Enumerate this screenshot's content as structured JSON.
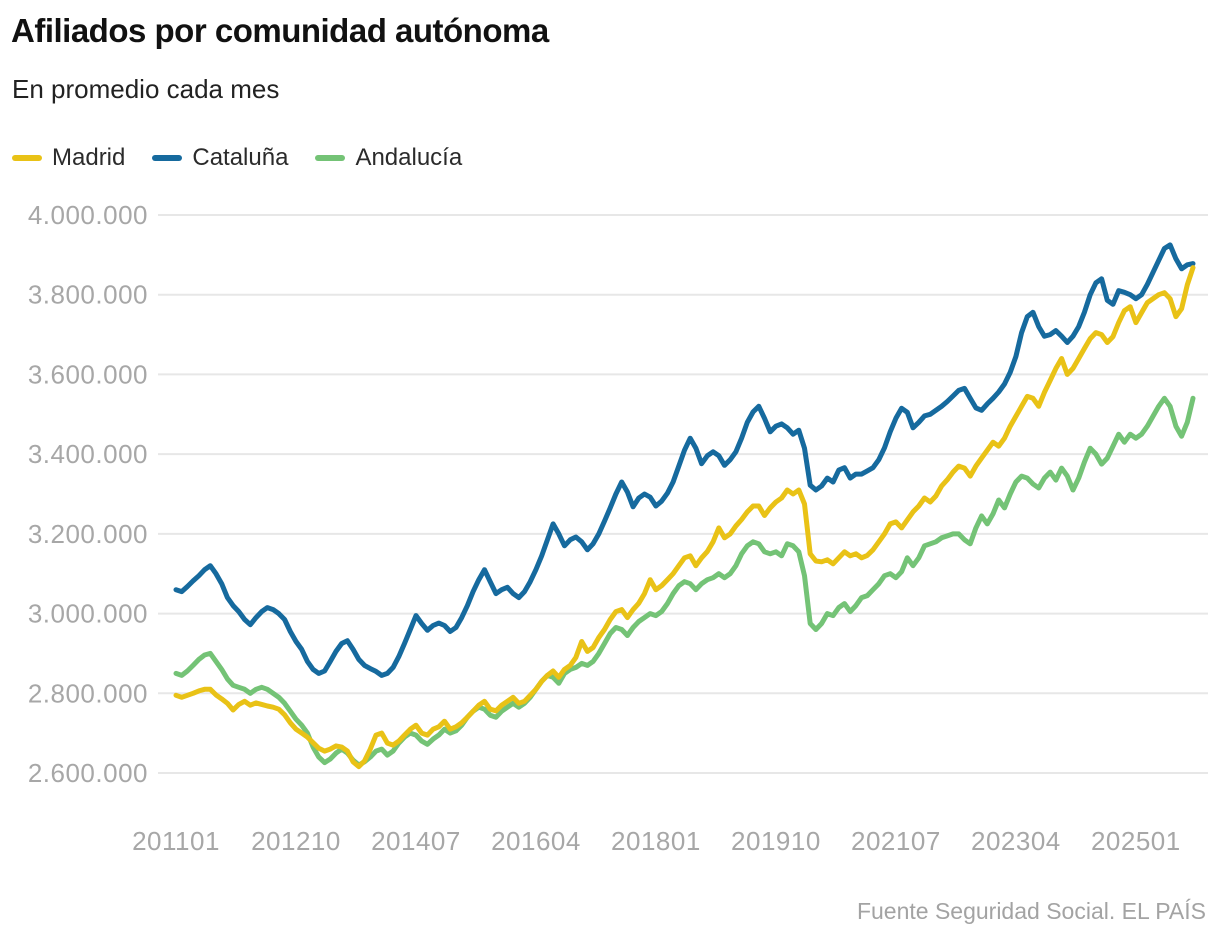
{
  "header": {
    "title": "Afiliados por comunidad autónoma",
    "subtitle": "En promedio cada mes"
  },
  "source": "Fuente Seguridad Social. EL PAÍS",
  "colors": {
    "madrid": "#e9c216",
    "cataluna": "#166a9e",
    "andalucia": "#74c376",
    "grid": "#e7e7e7",
    "axis_text": "#a7a7a7",
    "title_text": "#111111"
  },
  "chart_data": {
    "type": "line",
    "title": "Afiliados por comunidad autónoma",
    "subtitle": "En promedio cada mes",
    "source": "Fuente Seguridad Social. EL PAÍS",
    "x_format": "YYYYMM",
    "x_first": "201101",
    "points_per_series": 179,
    "x_interval": "monthly",
    "legend_position": "top",
    "grid": "horizontal",
    "ylim": [
      2600000,
      4000000
    ],
    "y_ticks": [
      {
        "value": 4000000,
        "label": "4.000.000"
      },
      {
        "value": 3800000,
        "label": "3.800.000"
      },
      {
        "value": 3600000,
        "label": "3.600.000"
      },
      {
        "value": 3400000,
        "label": "3.400.000"
      },
      {
        "value": 3200000,
        "label": "3.200.000"
      },
      {
        "value": 3000000,
        "label": "3.000.000"
      },
      {
        "value": 2800000,
        "label": "2.800.000"
      },
      {
        "value": 2600000,
        "label": "2.600.000"
      }
    ],
    "x_ticks": [
      {
        "index": 0,
        "label": "201101"
      },
      {
        "index": 21,
        "label": "201210"
      },
      {
        "index": 42,
        "label": "201407"
      },
      {
        "index": 63,
        "label": "201604"
      },
      {
        "index": 84,
        "label": "201801"
      },
      {
        "index": 105,
        "label": "201910"
      },
      {
        "index": 126,
        "label": "202107"
      },
      {
        "index": 147,
        "label": "202304"
      },
      {
        "index": 168,
        "label": "202501"
      }
    ],
    "series": [
      {
        "name": "Madrid",
        "color": "#e9c216",
        "values": [
          2795000,
          2790000,
          2795000,
          2800000,
          2806000,
          2810000,
          2810000,
          2796000,
          2786000,
          2775000,
          2758000,
          2772000,
          2780000,
          2770000,
          2776000,
          2772000,
          2768000,
          2765000,
          2760000,
          2746000,
          2726000,
          2710000,
          2700000,
          2690000,
          2676000,
          2662000,
          2655000,
          2660000,
          2668000,
          2665000,
          2655000,
          2628000,
          2616000,
          2630000,
          2660000,
          2695000,
          2700000,
          2675000,
          2670000,
          2680000,
          2695000,
          2710000,
          2720000,
          2700000,
          2695000,
          2710000,
          2716000,
          2730000,
          2710000,
          2716000,
          2726000,
          2740000,
          2755000,
          2770000,
          2780000,
          2760000,
          2756000,
          2770000,
          2780000,
          2790000,
          2775000,
          2780000,
          2795000,
          2810000,
          2830000,
          2845000,
          2856000,
          2840000,
          2860000,
          2870000,
          2890000,
          2930000,
          2905000,
          2915000,
          2940000,
          2960000,
          2985000,
          3005000,
          3010000,
          2990000,
          3010000,
          3026000,
          3050000,
          3085000,
          3060000,
          3070000,
          3085000,
          3100000,
          3120000,
          3140000,
          3145000,
          3120000,
          3140000,
          3156000,
          3180000,
          3215000,
          3190000,
          3200000,
          3220000,
          3236000,
          3255000,
          3270000,
          3270000,
          3246000,
          3265000,
          3280000,
          3290000,
          3310000,
          3300000,
          3310000,
          3275000,
          3150000,
          3132000,
          3130000,
          3135000,
          3125000,
          3140000,
          3155000,
          3145000,
          3150000,
          3140000,
          3146000,
          3160000,
          3180000,
          3200000,
          3225000,
          3230000,
          3215000,
          3235000,
          3255000,
          3270000,
          3290000,
          3280000,
          3295000,
          3320000,
          3336000,
          3355000,
          3370000,
          3365000,
          3345000,
          3370000,
          3390000,
          3410000,
          3430000,
          3420000,
          3440000,
          3470000,
          3495000,
          3520000,
          3545000,
          3540000,
          3520000,
          3555000,
          3585000,
          3615000,
          3640000,
          3600000,
          3615000,
          3640000,
          3665000,
          3690000,
          3705000,
          3700000,
          3680000,
          3695000,
          3730000,
          3760000,
          3770000,
          3730000,
          3755000,
          3780000,
          3790000,
          3800000,
          3805000,
          3790000,
          3745000,
          3765000,
          3825000,
          3868000
        ]
      },
      {
        "name": "Cataluña",
        "color": "#166a9e",
        "values": [
          3060000,
          3055000,
          3068000,
          3082000,
          3095000,
          3110000,
          3120000,
          3100000,
          3075000,
          3040000,
          3020000,
          3005000,
          2985000,
          2972000,
          2990000,
          3005000,
          3015000,
          3010000,
          3000000,
          2985000,
          2955000,
          2930000,
          2910000,
          2880000,
          2860000,
          2850000,
          2856000,
          2880000,
          2905000,
          2925000,
          2932000,
          2910000,
          2885000,
          2870000,
          2862000,
          2855000,
          2845000,
          2850000,
          2865000,
          2892000,
          2925000,
          2960000,
          2995000,
          2975000,
          2958000,
          2970000,
          2976000,
          2970000,
          2955000,
          2965000,
          2990000,
          3020000,
          3055000,
          3085000,
          3110000,
          3080000,
          3050000,
          3060000,
          3066000,
          3050000,
          3040000,
          3055000,
          3080000,
          3110000,
          3145000,
          3185000,
          3225000,
          3200000,
          3170000,
          3185000,
          3192000,
          3180000,
          3160000,
          3175000,
          3200000,
          3232000,
          3265000,
          3300000,
          3330000,
          3305000,
          3268000,
          3290000,
          3300000,
          3292000,
          3270000,
          3282000,
          3302000,
          3330000,
          3370000,
          3410000,
          3440000,
          3415000,
          3376000,
          3396000,
          3406000,
          3396000,
          3372000,
          3386000,
          3406000,
          3440000,
          3480000,
          3506000,
          3520000,
          3490000,
          3456000,
          3470000,
          3476000,
          3466000,
          3450000,
          3460000,
          3415000,
          3322000,
          3310000,
          3320000,
          3340000,
          3330000,
          3360000,
          3366000,
          3340000,
          3350000,
          3350000,
          3358000,
          3366000,
          3386000,
          3416000,
          3456000,
          3490000,
          3515000,
          3505000,
          3466000,
          3480000,
          3496000,
          3500000,
          3510000,
          3520000,
          3532000,
          3546000,
          3560000,
          3565000,
          3540000,
          3516000,
          3510000,
          3526000,
          3540000,
          3556000,
          3576000,
          3605000,
          3645000,
          3705000,
          3745000,
          3756000,
          3720000,
          3696000,
          3700000,
          3710000,
          3696000,
          3680000,
          3696000,
          3720000,
          3756000,
          3800000,
          3830000,
          3840000,
          3786000,
          3776000,
          3810000,
          3806000,
          3800000,
          3790000,
          3800000,
          3826000,
          3856000,
          3886000,
          3916000,
          3925000,
          3890000,
          3865000,
          3875000,
          3878000
        ]
      },
      {
        "name": "Andalucía",
        "color": "#74c376",
        "values": [
          2850000,
          2845000,
          2856000,
          2870000,
          2885000,
          2896000,
          2900000,
          2880000,
          2860000,
          2836000,
          2820000,
          2815000,
          2810000,
          2800000,
          2810000,
          2815000,
          2810000,
          2800000,
          2790000,
          2775000,
          2755000,
          2735000,
          2720000,
          2700000,
          2665000,
          2640000,
          2626000,
          2635000,
          2650000,
          2660000,
          2650000,
          2632000,
          2620000,
          2628000,
          2640000,
          2655000,
          2660000,
          2645000,
          2655000,
          2675000,
          2690000,
          2700000,
          2695000,
          2680000,
          2672000,
          2685000,
          2695000,
          2710000,
          2700000,
          2706000,
          2720000,
          2740000,
          2755000,
          2765000,
          2760000,
          2745000,
          2740000,
          2755000,
          2765000,
          2775000,
          2765000,
          2775000,
          2790000,
          2810000,
          2830000,
          2845000,
          2840000,
          2825000,
          2850000,
          2860000,
          2865000,
          2875000,
          2870000,
          2880000,
          2900000,
          2925000,
          2950000,
          2965000,
          2960000,
          2945000,
          2965000,
          2980000,
          2990000,
          3000000,
          2995000,
          3005000,
          3025000,
          3050000,
          3070000,
          3080000,
          3075000,
          3060000,
          3075000,
          3085000,
          3090000,
          3100000,
          3090000,
          3100000,
          3120000,
          3150000,
          3170000,
          3180000,
          3175000,
          3155000,
          3150000,
          3155000,
          3145000,
          3175000,
          3170000,
          3155000,
          3095000,
          2975000,
          2960000,
          2975000,
          3000000,
          2995000,
          3015000,
          3025000,
          3005000,
          3020000,
          3040000,
          3045000,
          3060000,
          3075000,
          3095000,
          3100000,
          3090000,
          3105000,
          3140000,
          3120000,
          3140000,
          3170000,
          3175000,
          3180000,
          3190000,
          3195000,
          3200000,
          3200000,
          3185000,
          3175000,
          3215000,
          3245000,
          3225000,
          3250000,
          3285000,
          3265000,
          3300000,
          3330000,
          3345000,
          3340000,
          3325000,
          3315000,
          3340000,
          3355000,
          3335000,
          3365000,
          3345000,
          3310000,
          3340000,
          3380000,
          3415000,
          3400000,
          3375000,
          3390000,
          3420000,
          3450000,
          3430000,
          3450000,
          3440000,
          3450000,
          3470000,
          3495000,
          3520000,
          3540000,
          3520000,
          3470000,
          3445000,
          3480000,
          3540000
        ]
      }
    ]
  }
}
